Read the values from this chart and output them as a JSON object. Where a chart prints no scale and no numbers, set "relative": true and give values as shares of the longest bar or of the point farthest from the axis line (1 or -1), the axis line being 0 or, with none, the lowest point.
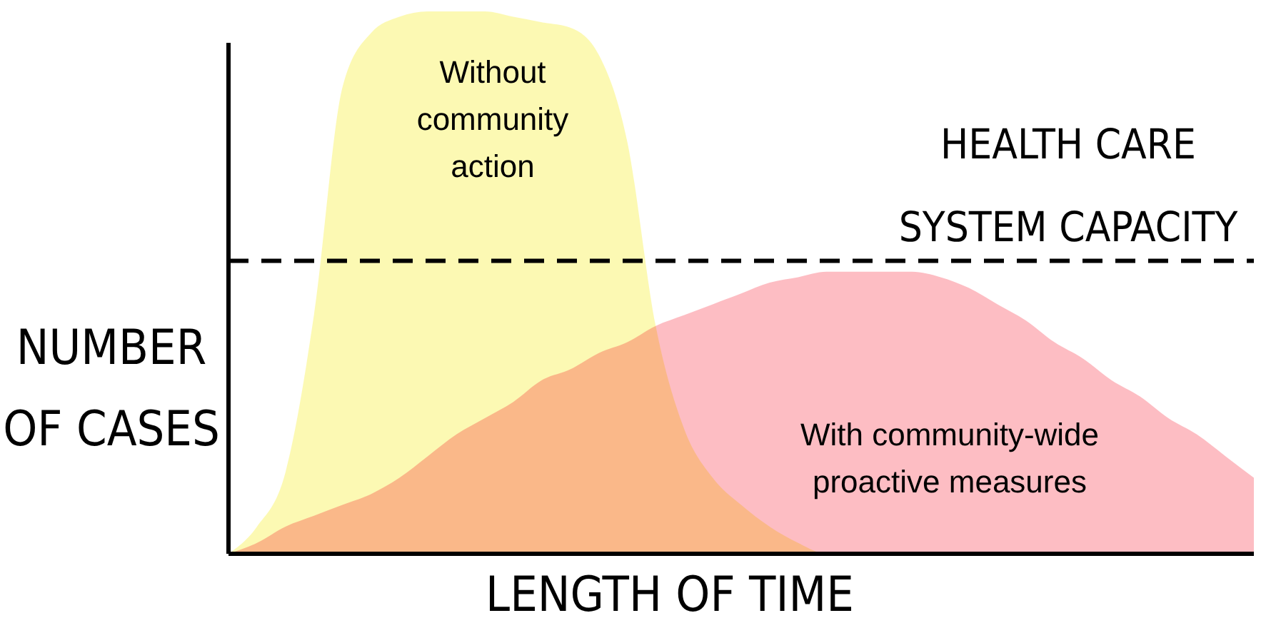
{
  "chart_data": {
    "type": "area",
    "relative": true,
    "xlabel": "LENGTH OF TIME",
    "ylabel": "NUMBER\nOF CASES",
    "categories": [
      null,
      null,
      null,
      null,
      null,
      null,
      null,
      null,
      null,
      null,
      null,
      null,
      null,
      null,
      null,
      null,
      null,
      null,
      null,
      null,
      null,
      null,
      null,
      null,
      null,
      null,
      null,
      null,
      null,
      null,
      null,
      null,
      null,
      null,
      null,
      null,
      null
    ],
    "series": [
      {
        "name": "Without\ncommunity\naction",
        "color": "#fbf8a6",
        "values": [
          0,
          0.05,
          0.15,
          0.44,
          0.86,
          0.96,
          0.99,
          1,
          1,
          1,
          0.99,
          0.98,
          0.97,
          0.92,
          0.76,
          0.42,
          0.23,
          0.14,
          0.09,
          0.05,
          0.02,
          0,
          0,
          0,
          0,
          0,
          0,
          0,
          0,
          0,
          0,
          0,
          0,
          0,
          0,
          0,
          0
        ]
      },
      {
        "name": "With community-wide\nproactive measures",
        "color": "#fdb2b9",
        "values": [
          0,
          0.02,
          0.05,
          0.07,
          0.09,
          0.11,
          0.14,
          0.18,
          0.22,
          0.25,
          0.28,
          0.32,
          0.34,
          0.37,
          0.39,
          0.42,
          0.44,
          0.46,
          0.48,
          0.5,
          0.51,
          0.52,
          0.52,
          0.52,
          0.52,
          0.51,
          0.49,
          0.46,
          0.43,
          0.39,
          0.36,
          0.32,
          0.29,
          0.25,
          0.22,
          0.18,
          0.14
        ]
      }
    ],
    "ref_lines": [
      {
        "axis": "y",
        "value": 0.54,
        "label": "HEALTH CARE\nSYSTEM CAPACITY",
        "color": "#000000",
        "line_style": "dashed"
      }
    ]
  }
}
